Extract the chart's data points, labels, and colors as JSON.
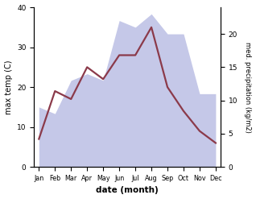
{
  "months": [
    "Jan",
    "Feb",
    "Mar",
    "Apr",
    "May",
    "Jun",
    "Jul",
    "Aug",
    "Sep",
    "Oct",
    "Nov",
    "Dec"
  ],
  "max_temp": [
    7.0,
    19.0,
    17.0,
    25.0,
    22.0,
    28.0,
    28.0,
    35.0,
    20.0,
    14.0,
    9.0,
    6.0
  ],
  "precipitation": [
    9.0,
    8.0,
    13.0,
    14.0,
    13.0,
    22.0,
    21.0,
    23.0,
    20.0,
    20.0,
    11.0,
    11.0
  ],
  "temp_color": "#8B3A4A",
  "precip_fill_color": "#c5c8e8",
  "ylabel_left": "max temp (C)",
  "ylabel_right": "med. precipitation (kg/m2)",
  "xlabel": "date (month)",
  "ylim_left": [
    0,
    40
  ],
  "ylim_right": [
    0,
    24
  ],
  "bg_color": "#ffffff"
}
